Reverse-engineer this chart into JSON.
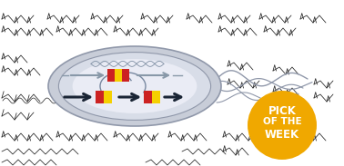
{
  "bg_color": "#ffffff",
  "cell_outer_fill": "#c8cdd8",
  "cell_mid_fill": "#d8dde8",
  "cell_inner_fill": "#eaecf5",
  "cell_outline": "#9098aa",
  "arrow1_color": "#8898a8",
  "arrow2_color": "#1a2535",
  "red_block": "#cc2222",
  "yellow_block": "#f5d000",
  "badge_color": "#f0a800",
  "badge_text_color": "#ffffff",
  "badge_text": [
    "PICK",
    "OF THE",
    "WEEK"
  ],
  "flagella_color": "#9098aa",
  "structure_color": "#222222",
  "loop_color": "#7888a0",
  "chain_color": "#333333"
}
